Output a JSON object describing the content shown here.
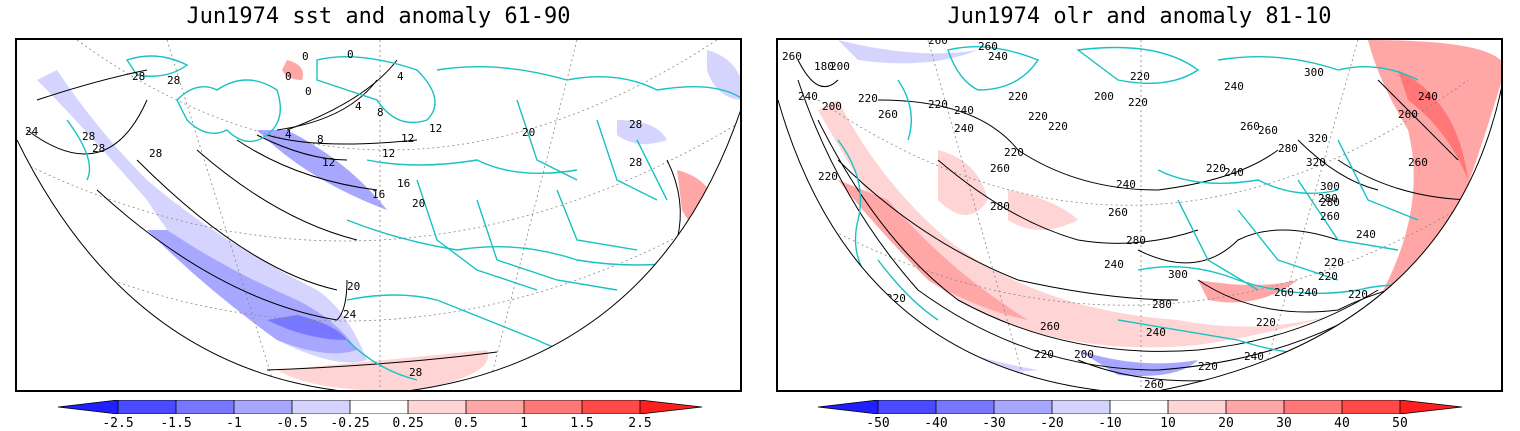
{
  "panels": [
    {
      "title": "Jun1974 sst and anomaly 61-90",
      "colorbar": {
        "labels": [
          "-2.5",
          "-1.5",
          "-1",
          "-0.5",
          "-0.25",
          "0.25",
          "0.5",
          "1",
          "1.5",
          "2.5"
        ],
        "colors": [
          "#1f1fff",
          "#4a4aff",
          "#7777ff",
          "#a7a7ff",
          "#d4d4ff",
          "#ffffff",
          "#ffd4d4",
          "#ffa7a7",
          "#ff7777",
          "#ff4a4a",
          "#ff1f1f"
        ]
      },
      "contour_labels": [
        "28",
        "28",
        "28",
        "28",
        "24",
        "28",
        "12",
        "4",
        "8",
        "12",
        "16",
        "16",
        "20",
        "20",
        "24",
        "28",
        "28",
        "28",
        "20",
        "12",
        "4",
        "8",
        "12",
        "4",
        "0",
        "0",
        "0",
        "0"
      ]
    },
    {
      "title": "Jun1974 olr and anomaly 81-10",
      "colorbar": {
        "labels": [
          "-50",
          "-40",
          "-30",
          "-20",
          "-10",
          "10",
          "20",
          "30",
          "40",
          "50"
        ],
        "colors": [
          "#1f1fff",
          "#4a4aff",
          "#7777ff",
          "#a7a7ff",
          "#d4d4ff",
          "#ffffff",
          "#ffd4d4",
          "#ffa7a7",
          "#ff7777",
          "#ff4a4a",
          "#ff1f1f"
        ]
      },
      "contour_labels": [
        "260",
        "180",
        "200",
        "200",
        "240",
        "220",
        "260",
        "260",
        "260",
        "240",
        "220",
        "240",
        "220",
        "200",
        "220",
        "220",
        "220",
        "220",
        "240",
        "240",
        "260",
        "260",
        "280",
        "220",
        "240",
        "260",
        "280",
        "260",
        "220",
        "240",
        "220",
        "300",
        "320",
        "320",
        "280",
        "300",
        "260",
        "280",
        "240",
        "240",
        "260",
        "280",
        "260",
        "300",
        "220",
        "280",
        "220",
        "260",
        "240",
        "220",
        "200",
        "220",
        "240",
        "240",
        "260",
        "220",
        "260",
        "240",
        "220",
        "240",
        "220"
      ]
    }
  ],
  "palette": {
    "coast": "#19c2c2",
    "contour": "#000000",
    "grid": "#888888"
  }
}
